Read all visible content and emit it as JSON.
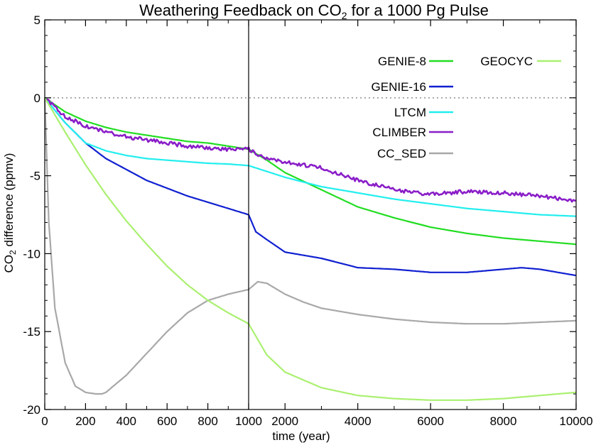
{
  "chart_data": {
    "type": "line",
    "title": "Weathering Feedback on CO",
    "title_sub": "2",
    "title_rest": " for a 1000 Pg Pulse",
    "ylabel_prefix": "CO",
    "ylabel_sub": "2",
    "ylabel_rest": " difference (ppmv)",
    "xlabel": "time (year)",
    "ylim": [
      -20,
      5
    ],
    "y_ticks": [
      5,
      0,
      -5,
      -10,
      -15,
      -20
    ],
    "y_tick_labels": [
      "5",
      "0",
      "-5",
      "-10",
      "-15",
      "-20"
    ],
    "x_break": 1000,
    "x_left_range": [
      0,
      1000
    ],
    "x_right_range": [
      1000,
      10000
    ],
    "x_ticks": [
      0,
      200,
      400,
      600,
      800,
      1000,
      2000,
      4000,
      6000,
      8000,
      10000
    ],
    "x_tick_labels": [
      "0",
      "200",
      "400",
      "600",
      "800",
      "1000",
      "2000",
      "4000",
      "6000",
      "8000",
      "10000"
    ],
    "zero_line": 0,
    "grid": false,
    "legend_position": "top-right",
    "series": [
      {
        "name": "GENIE-8",
        "color": "#22dd22",
        "noise": 0,
        "x": [
          0,
          100,
          200,
          300,
          400,
          500,
          600,
          700,
          800,
          900,
          1000,
          1500,
          2000,
          3000,
          4000,
          5000,
          6000,
          7000,
          8000,
          9000,
          10000
        ],
        "y": [
          0,
          -0.9,
          -1.5,
          -1.9,
          -2.2,
          -2.4,
          -2.6,
          -2.8,
          -2.9,
          -3.1,
          -3.3,
          -4.0,
          -4.8,
          -5.9,
          -7.0,
          -7.7,
          -8.3,
          -8.7,
          -9.0,
          -9.2,
          -9.4
        ]
      },
      {
        "name": "GENIE-16",
        "color": "#1020d0",
        "noise": 0,
        "x": [
          0,
          50,
          100,
          200,
          300,
          400,
          500,
          600,
          700,
          800,
          900,
          1000,
          1200,
          1500,
          2000,
          2500,
          3000,
          3500,
          4000,
          5000,
          6000,
          7000,
          8000,
          8500,
          9000,
          10000
        ],
        "y": [
          0,
          -0.8,
          -1.6,
          -2.9,
          -3.9,
          -4.6,
          -5.3,
          -5.8,
          -6.3,
          -6.7,
          -7.1,
          -7.5,
          -8.6,
          -9.1,
          -9.9,
          -10.1,
          -10.3,
          -10.6,
          -10.9,
          -11.0,
          -11.2,
          -11.2,
          -11.0,
          -10.9,
          -11.0,
          -11.4
        ]
      },
      {
        "name": "LTCM",
        "color": "#22eeee",
        "noise": 0,
        "x": [
          0,
          100,
          200,
          300,
          400,
          500,
          600,
          700,
          800,
          900,
          1000,
          2000,
          3000,
          4000,
          5000,
          6000,
          7000,
          8000,
          9000,
          10000
        ],
        "y": [
          0,
          -1.6,
          -2.9,
          -3.4,
          -3.7,
          -3.9,
          -4.0,
          -4.1,
          -4.2,
          -4.25,
          -4.35,
          -5.1,
          -5.7,
          -6.1,
          -6.5,
          -6.8,
          -7.1,
          -7.3,
          -7.5,
          -7.6
        ]
      },
      {
        "name": "CLIMBER",
        "color": "#8a1ec8",
        "noise": 0.12,
        "x": [
          0,
          100,
          200,
          300,
          400,
          500,
          600,
          700,
          800,
          900,
          1000,
          1500,
          2000,
          3000,
          4000,
          5000,
          6000,
          7000,
          8000,
          9000,
          10000
        ],
        "y": [
          0,
          -1.2,
          -1.8,
          -2.2,
          -2.5,
          -2.7,
          -2.9,
          -3.1,
          -3.2,
          -3.3,
          -3.3,
          -3.9,
          -4.1,
          -4.5,
          -5.3,
          -5.9,
          -6.2,
          -6.0,
          -6.1,
          -6.3,
          -6.6
        ]
      },
      {
        "name": "CC_SED",
        "color": "#a8a8a8",
        "noise": 0,
        "x": [
          0,
          20,
          50,
          100,
          150,
          200,
          250,
          280,
          300,
          400,
          500,
          600,
          700,
          800,
          900,
          1000,
          1250,
          1500,
          2000,
          2500,
          3000,
          4000,
          5000,
          6000,
          7000,
          8000,
          9000,
          10000
        ],
        "y": [
          0,
          -8.0,
          -13.5,
          -17.0,
          -18.5,
          -18.9,
          -19.0,
          -19.0,
          -18.9,
          -17.8,
          -16.4,
          -15.0,
          -13.8,
          -13.0,
          -12.6,
          -12.3,
          -11.8,
          -11.9,
          -12.6,
          -13.1,
          -13.5,
          -13.9,
          -14.2,
          -14.4,
          -14.5,
          -14.5,
          -14.4,
          -14.3
        ]
      },
      {
        "name": "GEOCYC",
        "color": "#aaf070",
        "noise": 0,
        "x": [
          0,
          100,
          200,
          300,
          400,
          500,
          600,
          700,
          800,
          900,
          1000,
          1500,
          2000,
          3000,
          4000,
          5000,
          6000,
          7000,
          8000,
          9000,
          10000
        ],
        "y": [
          0,
          -2.2,
          -4.3,
          -6.2,
          -7.9,
          -9.4,
          -10.8,
          -12.0,
          -13.0,
          -13.8,
          -14.5,
          -16.5,
          -17.6,
          -18.6,
          -19.1,
          -19.3,
          -19.4,
          -19.4,
          -19.3,
          -19.1,
          -18.9
        ]
      }
    ]
  }
}
